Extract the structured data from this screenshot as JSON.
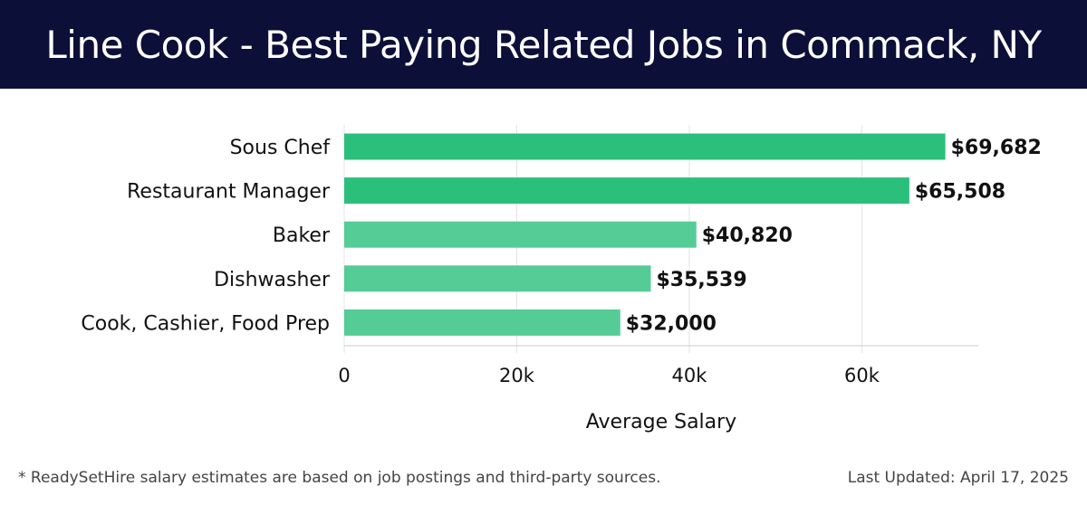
{
  "header": {
    "title": "Line Cook - Best Paying Related Jobs in Commack, NY"
  },
  "chart_data": {
    "type": "bar",
    "orientation": "horizontal",
    "categories": [
      "Sous Chef",
      "Restaurant Manager",
      "Baker",
      "Dishwasher",
      "Cook, Cashier, Food Prep"
    ],
    "values": [
      69682,
      65508,
      40820,
      35539,
      32000
    ],
    "value_labels": [
      "$69,682",
      "$65,508",
      "$40,820",
      "$35,539",
      "$32,000"
    ],
    "xlabel": "Average Salary",
    "ylabel": "",
    "xlim": [
      0,
      73500
    ],
    "xticks": [
      0,
      20000,
      40000,
      60000
    ],
    "xtick_labels": [
      "0",
      "20k",
      "40k",
      "60k"
    ],
    "grid": true,
    "colors": {
      "top": "#2bbf7c",
      "rest": "#55cc96"
    }
  },
  "footer": {
    "note": "* ReadySetHire salary estimates are based on job postings and third-party sources.",
    "updated": "Last Updated: April 17, 2025"
  }
}
